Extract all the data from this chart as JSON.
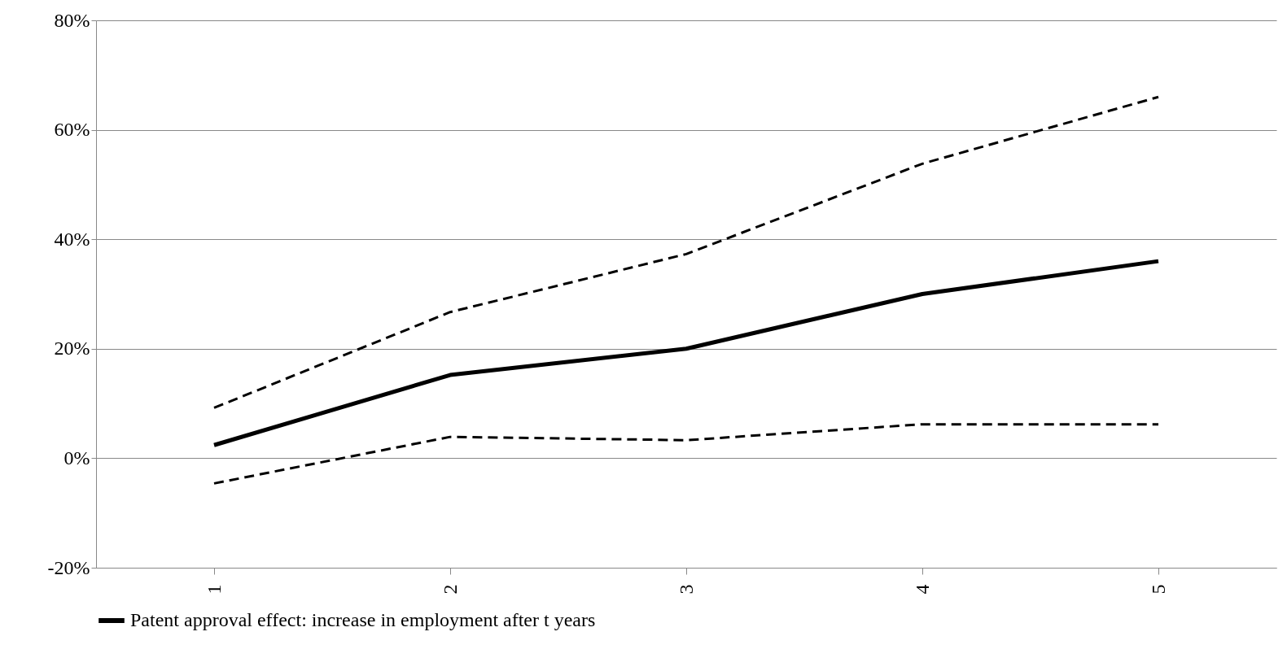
{
  "chart_data": {
    "type": "line",
    "categories": [
      "1",
      "2",
      "3",
      "4",
      "5"
    ],
    "series": [
      {
        "name": "Patent approval effect: increase in employment after t years",
        "color": "#000000",
        "line_style": "solid",
        "values": [
          2.4,
          15.2,
          20,
          30,
          36
        ]
      },
      {
        "color": "#000000",
        "line_style": "dashed",
        "values": [
          9.2,
          26.7,
          37.3,
          53.8,
          66
        ]
      },
      {
        "color": "#000000",
        "line_style": "dashed",
        "values": [
          -4.6,
          3.9,
          3.3,
          6.2,
          6.2
        ]
      }
    ],
    "ylim": [
      -20,
      80
    ],
    "yticks": [
      {
        "value": -20,
        "label": "-20%"
      },
      {
        "value": 0,
        "label": "0%"
      },
      {
        "value": 20,
        "label": "20%"
      },
      {
        "value": 40,
        "label": "40%"
      },
      {
        "value": 60,
        "label": "60%"
      },
      {
        "value": 80,
        "label": "80%"
      }
    ],
    "grid": "y",
    "legend": "bottom",
    "marker": "none"
  }
}
